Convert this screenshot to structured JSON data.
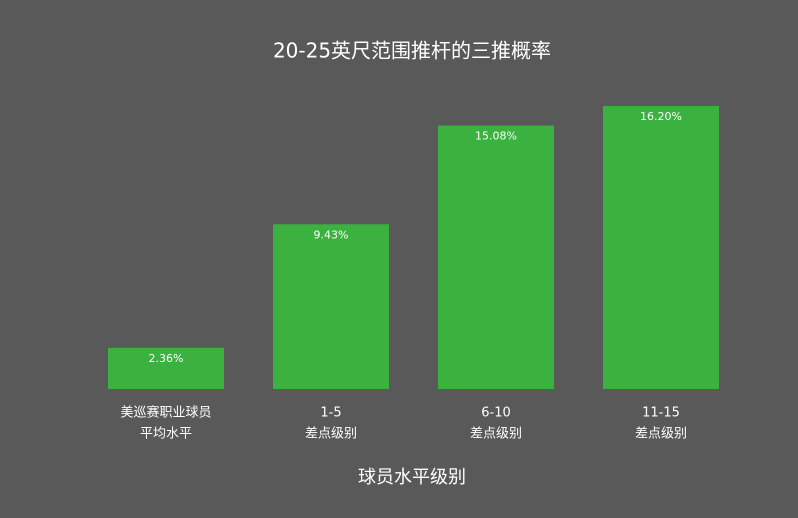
{
  "chart_data": {
    "type": "bar",
    "title": "20-25英尺范围推杆的三推概率",
    "x_label": "球员水平级别",
    "categories": [
      [
        "美巡赛职业球员",
        "平均水平"
      ],
      [
        "1-5",
        "差点级别"
      ],
      [
        "6-10",
        "差点级别"
      ],
      [
        "11-15",
        "差点级别"
      ]
    ],
    "values": [
      2.36,
      9.43,
      15.08,
      16.2
    ],
    "value_labels": [
      "2.36%",
      "9.43%",
      "15.08%",
      "16.20%"
    ],
    "color": "#3bb140"
  }
}
